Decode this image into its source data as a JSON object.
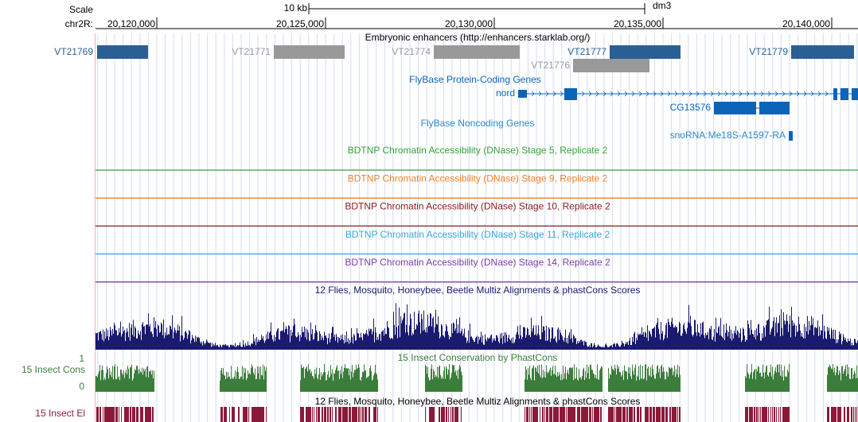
{
  "scale": {
    "label": "Scale",
    "span": "10 kb",
    "assembly": "dm3"
  },
  "ruler": {
    "chrom": "chr2R:",
    "ticks": [
      "20,120,000",
      "20,125,000",
      "20,130,000",
      "20,135,000",
      "20,140,000"
    ]
  },
  "tracks": {
    "enhancers": {
      "title": "Embryonic enhancers (http://enhancers.starklab.org/)",
      "items": [
        "VT21769",
        "VT21771",
        "VT21774",
        "VT21777",
        "VT21779",
        "VT21776"
      ]
    },
    "coding": {
      "title": "FlyBase Protein-Coding Genes",
      "genes": [
        "nord",
        "CG13576"
      ]
    },
    "noncoding": {
      "title": "FlyBase Noncoding Genes",
      "genes": [
        "snoRNA:Me18S-A1597-RA"
      ]
    },
    "dnase": [
      "BDTNP Chromatin Accessibility (DNase) Stage 5, Replicate 2",
      "BDTNP Chromatin Accessibility (DNase) Stage 9, Replicate 2",
      "BDTNP Chromatin Accessibility (DNase) Stage 10, Replicate 2",
      "BDTNP Chromatin Accessibility (DNase) Stage 11, Replicate 2",
      "BDTNP Chromatin Accessibility (DNase) Stage 14, Replicate 2"
    ],
    "multiz": {
      "title": "12 Flies, Mosquito, Honeybee, Beetle Multiz Alignments & phastCons Scores"
    },
    "cons": {
      "title": "15 Insect Conservation by PhastCons",
      "label": "15 Insect Cons",
      "max": "1",
      "min": "0"
    },
    "elements": {
      "title": "12 Flies, Mosquito, Honeybee, Beetle Multiz Alignments & phastCons Scores",
      "label": "15 Insect El"
    }
  }
}
